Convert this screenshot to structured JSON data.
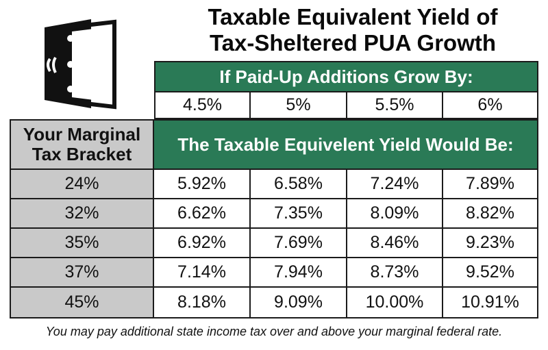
{
  "chart_data": {
    "type": "table",
    "title": "Taxable Equivalent Yield of Tax-Sheltered PUA Growth",
    "column_group_header": "If Paid-Up Additions Grow By:",
    "row_header": "Your Marginal Tax Bracket",
    "value_header": "The Taxable Equivelent Yield Would Be:",
    "columns": [
      "4.5%",
      "5%",
      "5.5%",
      "6%"
    ],
    "rows": [
      {
        "bracket": "24%",
        "values": [
          "5.92%",
          "6.58%",
          "7.24%",
          "7.89%"
        ]
      },
      {
        "bracket": "32%",
        "values": [
          "6.62%",
          "7.35%",
          "8.09%",
          "8.82%"
        ]
      },
      {
        "bracket": "35%",
        "values": [
          "6.92%",
          "7.69%",
          "8.46%",
          "9.23%"
        ]
      },
      {
        "bracket": "37%",
        "values": [
          "7.14%",
          "7.94%",
          "8.73%",
          "9.52%"
        ]
      },
      {
        "bracket": "45%",
        "values": [
          "8.18%",
          "9.09%",
          "10.00%",
          "10.91%"
        ]
      }
    ],
    "footnote": "You may pay additional state income tax over and above your marginal federal rate."
  },
  "title_lines": [
    "Taxable Equivalent Yield of",
    "Tax-Sheltered PUA Growth"
  ],
  "row_header_lines": [
    "Your Marginal",
    "Tax Bracket"
  ],
  "icon": "open-safe-door-icon",
  "colors": {
    "green": "#2a7a56",
    "gray": "#c9c9c9",
    "border": "#1a1a1a"
  }
}
